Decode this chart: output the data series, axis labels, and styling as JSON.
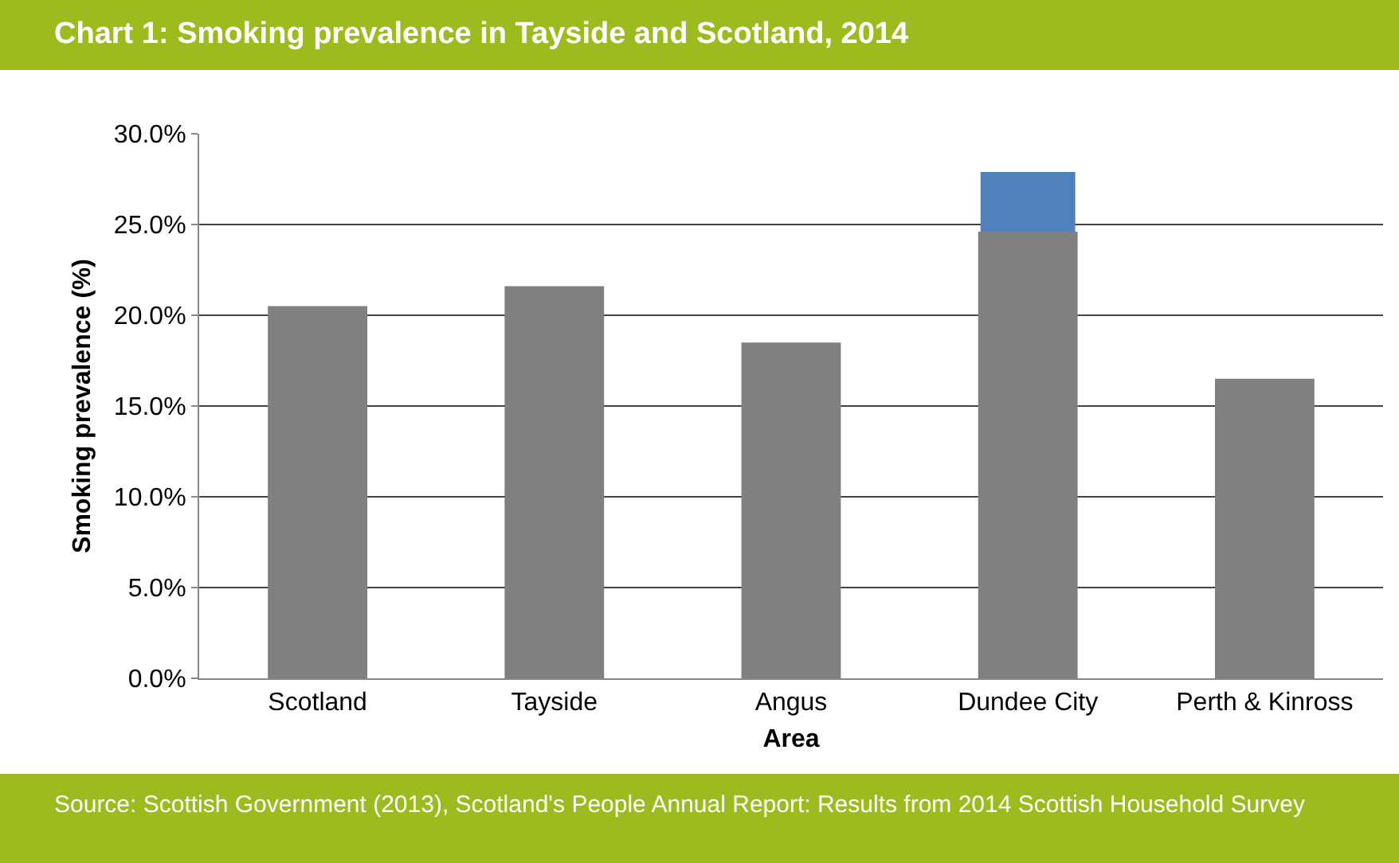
{
  "chart_data": {
    "type": "bar",
    "title": "Chart 1: Smoking prevalence in Tayside and Scotland, 2014",
    "categories": [
      "Scotland",
      "Tayside",
      "Angus",
      "Dundee City",
      "Perth & Kinross"
    ],
    "series": [
      {
        "color": "#4f81bd",
        "values": [
          null,
          null,
          null,
          27.9,
          null
        ]
      },
      {
        "color": "#808080",
        "values": [
          20.5,
          21.6,
          18.5,
          24.6,
          16.5
        ]
      }
    ],
    "xlabel": "Area",
    "ylabel": "Smoking prevalence (%)",
    "ylim": [
      0,
      30
    ],
    "yticks": [
      {
        "value": 0,
        "label": "0.0%"
      },
      {
        "value": 5,
        "label": "5.0%"
      },
      {
        "value": 10,
        "label": "10.0%"
      },
      {
        "value": 15,
        "label": "15.0%"
      },
      {
        "value": 20,
        "label": "20.0%"
      },
      {
        "value": 25,
        "label": "25.0%"
      },
      {
        "value": 30,
        "label": "30.0%"
      }
    ],
    "grid": "y",
    "annotations": [
      "Source: Scottish Government (2013), Scotland's People Annual Report: Results from 2014 Scottish Household Survey"
    ]
  }
}
